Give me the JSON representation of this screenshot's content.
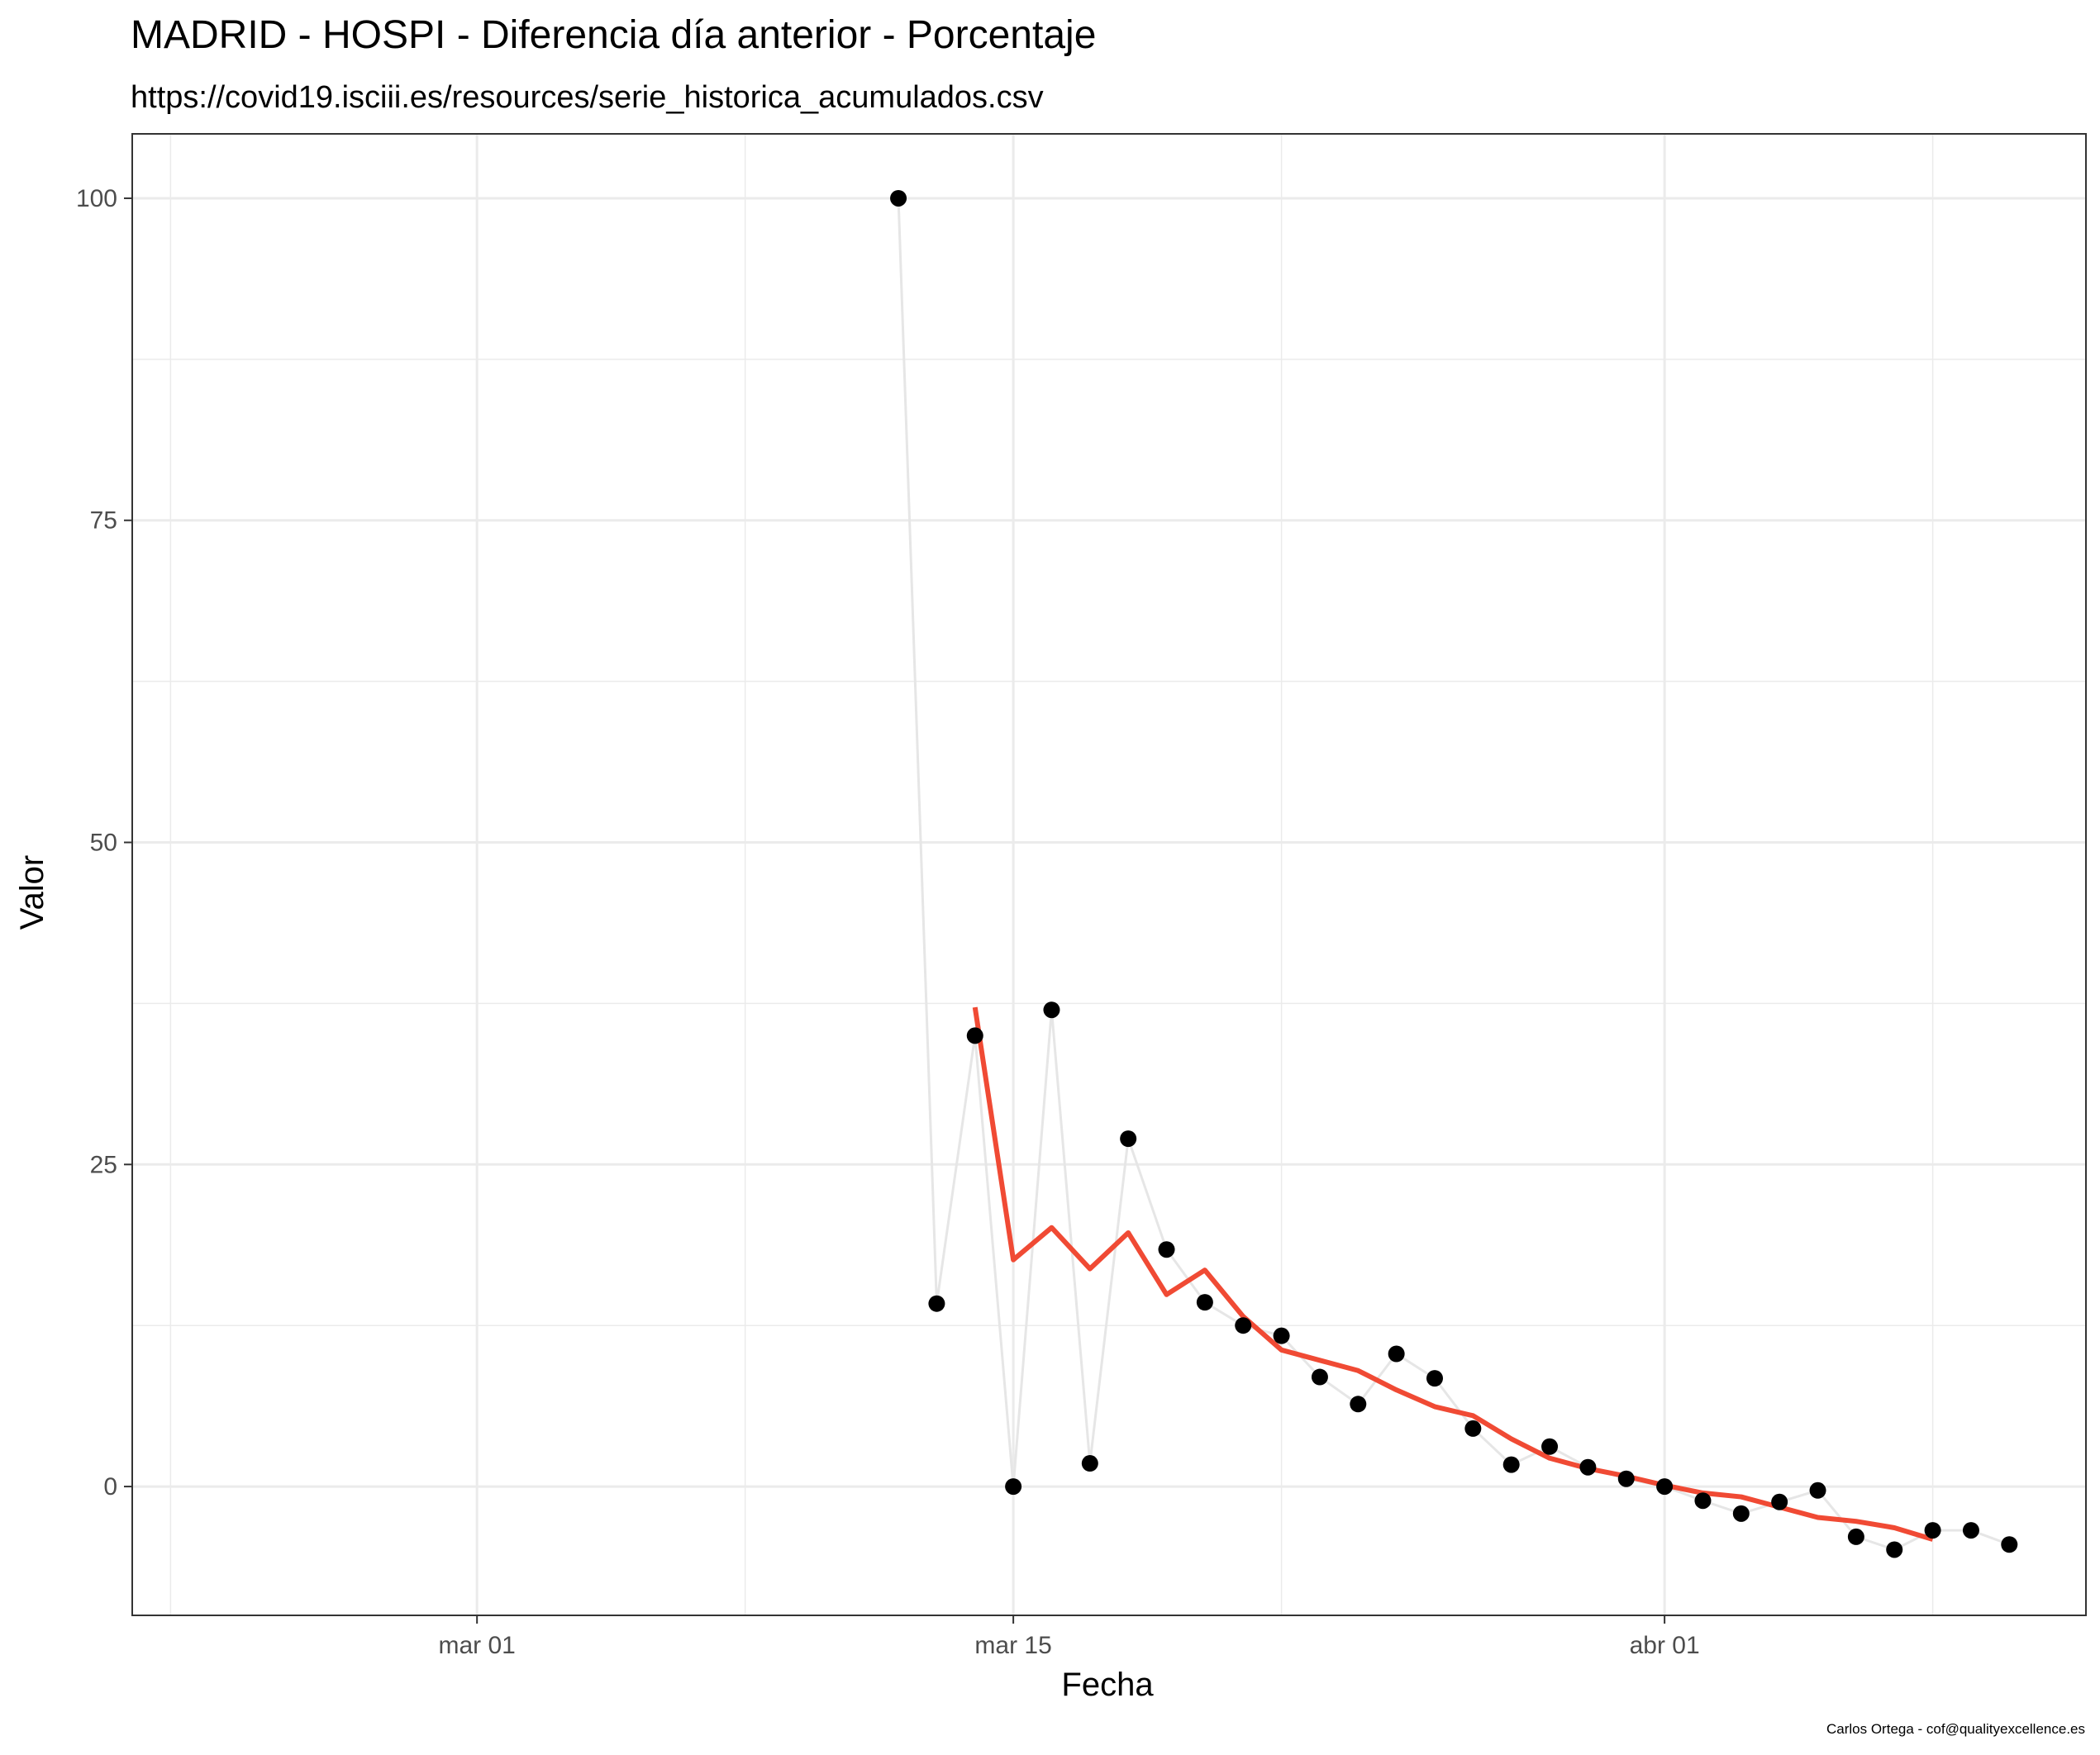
{
  "chart_data": {
    "type": "scatter",
    "title": "MADRID - HOSPI - Diferencia día anterior - Porcentaje",
    "subtitle": "https://covid19.isciii.es/resources/serie_historica_acumulados.csv",
    "xlabel": "Fecha",
    "ylabel": "Valor",
    "caption": "Carlos Ortega - cof@qualityexcellence.es",
    "xlim": [
      "2020-02-21",
      "2020-04-12"
    ],
    "ylim": [
      -10,
      105
    ],
    "x_ticks": [
      {
        "date": "2020-03-01",
        "label": "mar 01"
      },
      {
        "date": "2020-03-15",
        "label": "mar 15"
      },
      {
        "date": "2020-04-01",
        "label": "abr 01"
      }
    ],
    "x_minor_ticks": [
      "2020-02-22",
      "2020-03-08",
      "2020-03-22",
      "2020-04-08"
    ],
    "y_ticks": [
      0,
      25,
      50,
      75,
      100
    ],
    "y_minor_ticks": [
      12.5,
      37.5,
      62.5,
      87.5
    ],
    "grid": true,
    "colors": {
      "points": "#000000",
      "connector": "#e6e6e6",
      "smooth": "#f04a34",
      "grid": "#ebebeb",
      "panel_border": "#333333"
    },
    "series": [
      {
        "type": "points",
        "points": [
          {
            "x": "2020-03-12",
            "y": 100
          },
          {
            "x": "2020-03-13",
            "y": 14.2
          },
          {
            "x": "2020-03-14",
            "y": 35
          },
          {
            "x": "2020-03-15",
            "y": 0
          },
          {
            "x": "2020-03-16",
            "y": 37
          },
          {
            "x": "2020-03-17",
            "y": 1.8
          },
          {
            "x": "2020-03-18",
            "y": 27
          },
          {
            "x": "2020-03-19",
            "y": 18.4
          },
          {
            "x": "2020-03-20",
            "y": 14.3
          },
          {
            "x": "2020-03-21",
            "y": 12.5
          },
          {
            "x": "2020-03-22",
            "y": 11.7
          },
          {
            "x": "2020-03-23",
            "y": 8.5
          },
          {
            "x": "2020-03-24",
            "y": 6.4
          },
          {
            "x": "2020-03-25",
            "y": 10.3
          },
          {
            "x": "2020-03-26",
            "y": 8.4
          },
          {
            "x": "2020-03-27",
            "y": 4.5
          },
          {
            "x": "2020-03-28",
            "y": 1.7
          },
          {
            "x": "2020-03-29",
            "y": 3.1
          },
          {
            "x": "2020-03-30",
            "y": 1.5
          },
          {
            "x": "2020-03-31",
            "y": 0.6
          },
          {
            "x": "2020-04-01",
            "y": 0
          },
          {
            "x": "2020-04-02",
            "y": -1.1
          },
          {
            "x": "2020-04-03",
            "y": -2.1
          },
          {
            "x": "2020-04-04",
            "y": -1.2
          },
          {
            "x": "2020-04-05",
            "y": -0.3
          },
          {
            "x": "2020-04-06",
            "y": -3.9
          },
          {
            "x": "2020-04-07",
            "y": -4.9
          },
          {
            "x": "2020-04-08",
            "y": -3.4
          },
          {
            "x": "2020-04-09",
            "y": -3.4
          },
          {
            "x": "2020-04-10",
            "y": -4.5
          }
        ]
      },
      {
        "type": "line",
        "points": [
          {
            "x": "2020-03-14",
            "y": 37.2
          },
          {
            "x": "2020-03-15",
            "y": 17.6
          },
          {
            "x": "2020-03-16",
            "y": 20.1
          },
          {
            "x": "2020-03-17",
            "y": 16.9
          },
          {
            "x": "2020-03-18",
            "y": 19.7
          },
          {
            "x": "2020-03-19",
            "y": 14.9
          },
          {
            "x": "2020-03-20",
            "y": 16.8
          },
          {
            "x": "2020-03-21",
            "y": 13.2
          },
          {
            "x": "2020-03-22",
            "y": 10.6
          },
          {
            "x": "2020-03-23",
            "y": 9.8
          },
          {
            "x": "2020-03-24",
            "y": 9.0
          },
          {
            "x": "2020-03-25",
            "y": 7.5
          },
          {
            "x": "2020-03-26",
            "y": 6.2
          },
          {
            "x": "2020-03-27",
            "y": 5.5
          },
          {
            "x": "2020-03-28",
            "y": 3.7
          },
          {
            "x": "2020-03-29",
            "y": 2.2
          },
          {
            "x": "2020-03-30",
            "y": 1.4
          },
          {
            "x": "2020-03-31",
            "y": 0.8
          },
          {
            "x": "2020-04-01",
            "y": 0.1
          },
          {
            "x": "2020-04-02",
            "y": -0.5
          },
          {
            "x": "2020-04-03",
            "y": -0.8
          },
          {
            "x": "2020-04-04",
            "y": -1.6
          },
          {
            "x": "2020-04-05",
            "y": -2.4
          },
          {
            "x": "2020-04-06",
            "y": -2.7
          },
          {
            "x": "2020-04-07",
            "y": -3.2
          },
          {
            "x": "2020-04-08",
            "y": -4.1
          }
        ]
      }
    ]
  }
}
